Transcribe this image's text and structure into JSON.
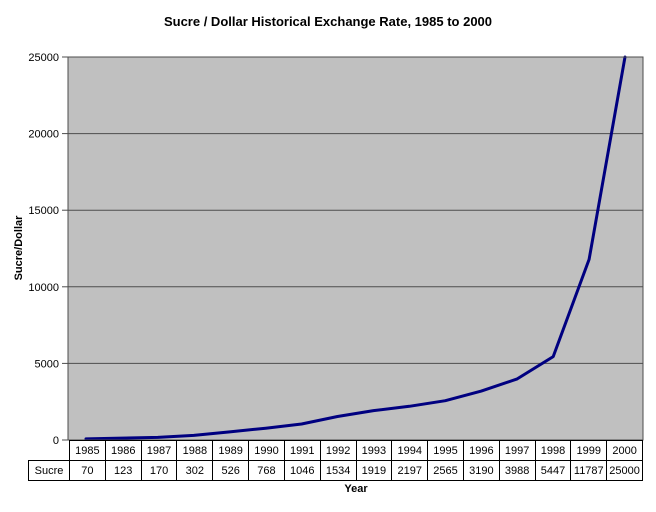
{
  "title": "Sucre / Dollar Historical Exchange Rate, 1985 to 2000",
  "chart_data": {
    "type": "line",
    "categories": [
      "1985",
      "1986",
      "1987",
      "1988",
      "1989",
      "1990",
      "1991",
      "1992",
      "1993",
      "1994",
      "1995",
      "1996",
      "1997",
      "1998",
      "1999",
      "2000"
    ],
    "series": [
      {
        "name": "Sucre",
        "values": [
          70,
          123,
          170,
          302,
          526,
          768,
          1046,
          1534,
          1919,
          2197,
          2565,
          3190,
          3988,
          5447,
          11787,
          25000
        ]
      }
    ],
    "xlabel": "Year",
    "ylabel": "Sucre/Dollar",
    "ylim": [
      0,
      25000
    ],
    "ytick_step": 5000,
    "ytick_labels": [
      "0",
      "5000",
      "10000",
      "15000",
      "20000",
      "25000"
    ],
    "grid": "horizontal",
    "legend": "none",
    "data_table_shown": true,
    "line_color": "#000080",
    "plot_bg": "#c0c0c0",
    "grid_color": "#4d4d4d"
  }
}
